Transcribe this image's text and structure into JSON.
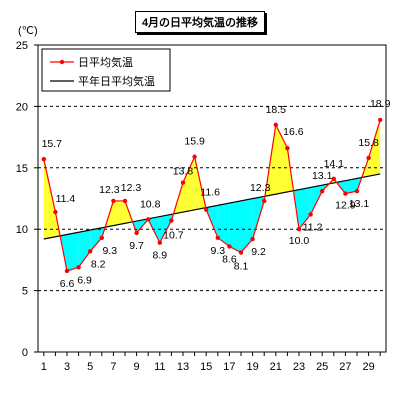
{
  "chart_data": {
    "type": "line",
    "title": "4月の日平均気温の推移",
    "unit_label": "(℃)",
    "ylim": [
      0,
      25
    ],
    "yticks": [
      0,
      5,
      10,
      15,
      20,
      25
    ],
    "xticks": [
      1,
      3,
      5,
      7,
      9,
      11,
      13,
      15,
      17,
      19,
      21,
      23,
      25,
      27,
      29
    ],
    "grid": "horizontal dashed",
    "legend_position": "top-left",
    "series": [
      {
        "name": "日平均気温",
        "color": "#ff0000",
        "x": [
          1,
          2,
          3,
          4,
          5,
          6,
          7,
          8,
          9,
          10,
          11,
          12,
          13,
          14,
          15,
          16,
          17,
          18,
          19,
          20,
          21,
          22,
          23,
          24,
          25,
          26,
          27,
          28,
          29,
          30
        ],
        "values": [
          15.7,
          11.4,
          6.6,
          6.9,
          8.2,
          9.3,
          12.3,
          12.3,
          9.7,
          10.8,
          8.9,
          10.7,
          13.8,
          15.9,
          11.6,
          9.3,
          8.6,
          8.1,
          9.2,
          12.3,
          18.5,
          16.6,
          10.0,
          11.2,
          13.1,
          14.1,
          12.9,
          13.1,
          15.8,
          18.9
        ],
        "labels": [
          "15.7",
          "11.4",
          "6.6",
          "6.9",
          "8.2",
          "9.3",
          "12.3",
          "12.3",
          "9.7",
          "10.8",
          "8.9",
          "10.7",
          "13.8",
          "15.9",
          "11.6",
          "9.3",
          "8.6",
          "8.1",
          "9.2",
          "12.3",
          "18.5",
          "16.6",
          "10.0",
          "11.2",
          "13.1",
          "14.1",
          "12.9",
          "13.1",
          "15.8",
          "18.9"
        ]
      },
      {
        "name": "平年日平均気温",
        "color": "#000000",
        "x": [
          1,
          30
        ],
        "values": [
          9.2,
          14.5
        ]
      }
    ],
    "fill_above_color": "#ffff33",
    "fill_below_color": "#00ffff"
  }
}
